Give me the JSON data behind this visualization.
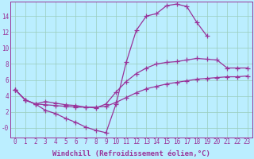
{
  "background_color": "#bbeeff",
  "grid_color": "#99ccbb",
  "line_color": "#993399",
  "marker": "+",
  "markersize": 4,
  "linewidth": 0.9,
  "markeredgewidth": 0.9,
  "xlabel": "Windchill (Refroidissement éolien,°C)",
  "xlabel_fontsize": 6.5,
  "tick_fontsize": 5.5,
  "xlim": [
    -0.5,
    23.5
  ],
  "ylim": [
    -1.2,
    15.8
  ],
  "xticks": [
    0,
    1,
    2,
    3,
    4,
    5,
    6,
    7,
    8,
    9,
    10,
    11,
    12,
    13,
    14,
    15,
    16,
    17,
    18,
    19,
    20,
    21,
    22,
    23
  ],
  "yticks": [
    0,
    2,
    4,
    6,
    8,
    10,
    12,
    14
  ],
  "ytick_labels": [
    "-0",
    "2",
    "4",
    "6",
    "8",
    "10",
    "12",
    "14"
  ],
  "series": [
    {
      "x": [
        0,
        1,
        2,
        3,
        4,
        5,
        6,
        7,
        8,
        9,
        10,
        11,
        12,
        13,
        14,
        15,
        16,
        17,
        18,
        19,
        20,
        21,
        22,
        23
      ],
      "y": [
        4.8,
        3.5,
        3.0,
        2.2,
        1.8,
        1.2,
        0.7,
        0.1,
        -0.3,
        -0.6,
        3.0,
        8.2,
        12.2,
        14.0,
        14.3,
        15.3,
        15.5,
        15.2,
        13.2,
        11.5,
        null,
        null,
        null,
        null
      ]
    },
    {
      "x": [
        0,
        1,
        2,
        3,
        4,
        5,
        6,
        7,
        8,
        9,
        10,
        11,
        12,
        13,
        14,
        15,
        16,
        17,
        18,
        19,
        20,
        21,
        22,
        23
      ],
      "y": [
        4.8,
        3.5,
        3.0,
        3.3,
        3.1,
        2.9,
        2.8,
        2.6,
        2.5,
        3.0,
        4.5,
        5.8,
        6.8,
        7.5,
        8.0,
        8.2,
        8.3,
        8.5,
        8.7,
        8.6,
        8.5,
        7.5,
        7.5,
        7.5
      ]
    },
    {
      "x": [
        0,
        1,
        2,
        3,
        4,
        5,
        6,
        7,
        8,
        9,
        10,
        11,
        12,
        13,
        14,
        15,
        16,
        17,
        18,
        19,
        20,
        21,
        22,
        23
      ],
      "y": [
        4.8,
        3.5,
        3.0,
        2.9,
        2.8,
        2.7,
        2.6,
        2.6,
        2.6,
        2.7,
        3.2,
        3.8,
        4.4,
        4.9,
        5.2,
        5.5,
        5.7,
        5.9,
        6.1,
        6.2,
        6.3,
        6.4,
        6.4,
        6.5
      ]
    }
  ]
}
